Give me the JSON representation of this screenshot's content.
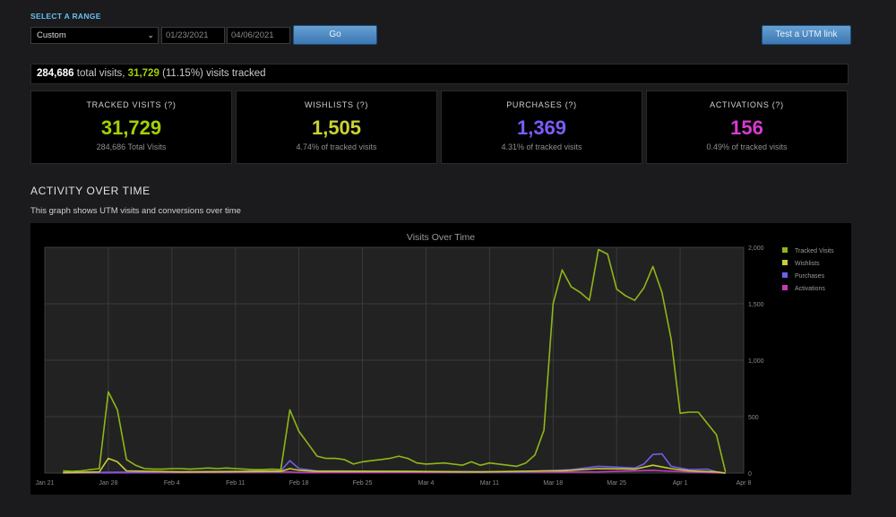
{
  "range": {
    "title": "SELECT A RANGE",
    "preset": "Custom",
    "start_date": "01/23/2021",
    "end_date": "04/06/2021",
    "go_label": "Go",
    "utm_button_label": "Test a UTM link"
  },
  "summary": {
    "total_visits": "284,686",
    "total_text": "total visits,",
    "tracked": "31,729",
    "tracked_pct": "(11.15%)",
    "tracked_text": "visits tracked"
  },
  "cards": [
    {
      "label": "TRACKED VISITS (?)",
      "value": "31,729",
      "sub": "284,686 Total Visits",
      "color": "#a4d007"
    },
    {
      "label": "WISHLISTS (?)",
      "value": "1,505",
      "sub": "4.74% of tracked visits",
      "color": "#cbd233"
    },
    {
      "label": "PURCHASES (?)",
      "value": "1,369",
      "sub": "4.31% of tracked visits",
      "color": "#7c5cff"
    },
    {
      "label": "ACTIVATIONS (?)",
      "value": "156",
      "sub": "0.49% of tracked visits",
      "color": "#d63bd0"
    }
  ],
  "activity": {
    "title": "ACTIVITY OVER TIME",
    "description": "This graph shows UTM visits and conversions over time"
  },
  "chart_data": {
    "type": "line",
    "title": "Visits Over Time",
    "x_tick_labels": [
      "Jan 21",
      "Jan 28",
      "Feb 4",
      "Feb 11",
      "Feb 18",
      "Feb 25",
      "Mar 4",
      "Mar 11",
      "Mar 18",
      "Mar 25",
      "Apr 1",
      "Apr 8"
    ],
    "y_tick_labels": [
      "0",
      "500",
      "1,000",
      "1,500",
      "2,000"
    ],
    "ylim": [
      0,
      2000
    ],
    "grid": true,
    "legend_position": "top-right",
    "series": [
      {
        "name": "Tracked Visits",
        "color": "#8fb619",
        "points": [
          [
            "2021-01-23",
            20
          ],
          [
            "2021-01-24",
            15
          ],
          [
            "2021-01-25",
            20
          ],
          [
            "2021-01-26",
            30
          ],
          [
            "2021-01-27",
            40
          ],
          [
            "2021-01-28",
            720
          ],
          [
            "2021-01-29",
            560
          ],
          [
            "2021-01-30",
            120
          ],
          [
            "2021-01-31",
            70
          ],
          [
            "2021-02-01",
            40
          ],
          [
            "2021-02-02",
            35
          ],
          [
            "2021-02-03",
            35
          ],
          [
            "2021-02-04",
            40
          ],
          [
            "2021-02-05",
            40
          ],
          [
            "2021-02-06",
            35
          ],
          [
            "2021-02-07",
            40
          ],
          [
            "2021-02-08",
            45
          ],
          [
            "2021-02-09",
            40
          ],
          [
            "2021-02-10",
            45
          ],
          [
            "2021-02-11",
            40
          ],
          [
            "2021-02-12",
            35
          ],
          [
            "2021-02-13",
            30
          ],
          [
            "2021-02-14",
            30
          ],
          [
            "2021-02-15",
            35
          ],
          [
            "2021-02-16",
            30
          ],
          [
            "2021-02-17",
            560
          ],
          [
            "2021-02-18",
            370
          ],
          [
            "2021-02-19",
            260
          ],
          [
            "2021-02-20",
            150
          ],
          [
            "2021-02-21",
            130
          ],
          [
            "2021-02-22",
            130
          ],
          [
            "2021-02-23",
            120
          ],
          [
            "2021-02-24",
            80
          ],
          [
            "2021-02-25",
            100
          ],
          [
            "2021-02-26",
            110
          ],
          [
            "2021-02-27",
            120
          ],
          [
            "2021-02-28",
            130
          ],
          [
            "2021-03-01",
            150
          ],
          [
            "2021-03-02",
            130
          ],
          [
            "2021-03-03",
            90
          ],
          [
            "2021-03-04",
            80
          ],
          [
            "2021-03-05",
            85
          ],
          [
            "2021-03-06",
            90
          ],
          [
            "2021-03-07",
            80
          ],
          [
            "2021-03-08",
            70
          ],
          [
            "2021-03-09",
            100
          ],
          [
            "2021-03-10",
            70
          ],
          [
            "2021-03-11",
            90
          ],
          [
            "2021-03-12",
            80
          ],
          [
            "2021-03-13",
            70
          ],
          [
            "2021-03-14",
            60
          ],
          [
            "2021-03-15",
            90
          ],
          [
            "2021-03-16",
            160
          ],
          [
            "2021-03-17",
            380
          ],
          [
            "2021-03-18",
            1500
          ],
          [
            "2021-03-19",
            1800
          ],
          [
            "2021-03-20",
            1650
          ],
          [
            "2021-03-21",
            1600
          ],
          [
            "2021-03-22",
            1530
          ],
          [
            "2021-03-23",
            1980
          ],
          [
            "2021-03-24",
            1940
          ],
          [
            "2021-03-25",
            1630
          ],
          [
            "2021-03-26",
            1570
          ],
          [
            "2021-03-27",
            1530
          ],
          [
            "2021-03-28",
            1640
          ],
          [
            "2021-03-29",
            1830
          ],
          [
            "2021-03-30",
            1600
          ],
          [
            "2021-03-31",
            1190
          ],
          [
            "2021-04-01",
            530
          ],
          [
            "2021-04-02",
            540
          ],
          [
            "2021-04-03",
            540
          ],
          [
            "2021-04-04",
            440
          ],
          [
            "2021-04-05",
            340
          ],
          [
            "2021-04-06",
            10
          ]
        ]
      },
      {
        "name": "Wishlists",
        "color": "#c9cc33",
        "points": [
          [
            "2021-01-23",
            5
          ],
          [
            "2021-01-27",
            10
          ],
          [
            "2021-01-28",
            130
          ],
          [
            "2021-01-29",
            100
          ],
          [
            "2021-01-30",
            20
          ],
          [
            "2021-02-05",
            10
          ],
          [
            "2021-02-16",
            15
          ],
          [
            "2021-02-17",
            40
          ],
          [
            "2021-02-18",
            25
          ],
          [
            "2021-02-20",
            15
          ],
          [
            "2021-03-01",
            15
          ],
          [
            "2021-03-10",
            10
          ],
          [
            "2021-03-17",
            20
          ],
          [
            "2021-03-19",
            20
          ],
          [
            "2021-03-23",
            40
          ],
          [
            "2021-03-27",
            35
          ],
          [
            "2021-03-29",
            70
          ],
          [
            "2021-03-31",
            40
          ],
          [
            "2021-04-02",
            20
          ],
          [
            "2021-04-05",
            10
          ],
          [
            "2021-04-06",
            0
          ]
        ]
      },
      {
        "name": "Purchases",
        "color": "#6f5fe8",
        "points": [
          [
            "2021-01-23",
            3
          ],
          [
            "2021-02-16",
            20
          ],
          [
            "2021-02-17",
            110
          ],
          [
            "2021-02-18",
            40
          ],
          [
            "2021-02-20",
            20
          ],
          [
            "2021-03-01",
            15
          ],
          [
            "2021-03-15",
            12
          ],
          [
            "2021-03-17",
            20
          ],
          [
            "2021-03-20",
            30
          ],
          [
            "2021-03-23",
            60
          ],
          [
            "2021-03-27",
            45
          ],
          [
            "2021-03-28",
            80
          ],
          [
            "2021-03-29",
            165
          ],
          [
            "2021-03-30",
            170
          ],
          [
            "2021-03-31",
            60
          ],
          [
            "2021-04-02",
            30
          ],
          [
            "2021-04-04",
            35
          ],
          [
            "2021-04-05",
            10
          ],
          [
            "2021-04-06",
            0
          ]
        ]
      },
      {
        "name": "Activations",
        "color": "#c43bb9",
        "points": [
          [
            "2021-01-23",
            0
          ],
          [
            "2021-02-17",
            10
          ],
          [
            "2021-02-18",
            5
          ],
          [
            "2021-03-23",
            10
          ],
          [
            "2021-03-29",
            25
          ],
          [
            "2021-03-30",
            20
          ],
          [
            "2021-04-02",
            10
          ],
          [
            "2021-04-06",
            0
          ]
        ]
      }
    ]
  }
}
